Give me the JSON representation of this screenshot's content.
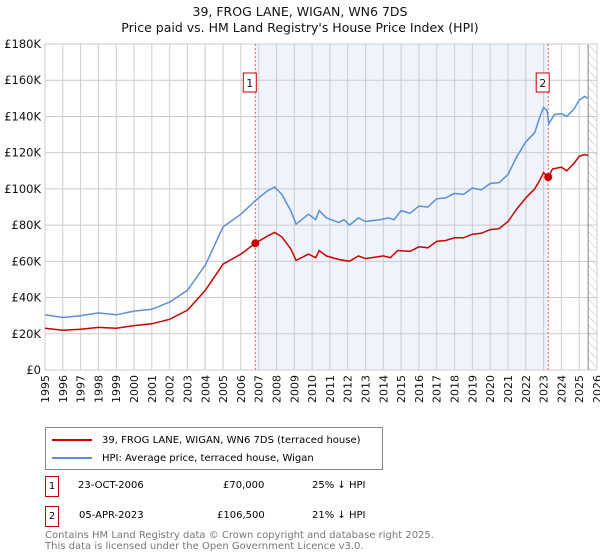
{
  "chart_data": {
    "type": "line",
    "title": "39, FROG LANE, WIGAN, WN6 7DS",
    "subtitle": "Price paid vs. HM Land Registry's House Price Index (HPI)",
    "xlim": [
      1995,
      2026
    ],
    "ylim": [
      0,
      180000
    ],
    "x_ticks": [
      "1995",
      "1996",
      "1997",
      "1998",
      "1999",
      "2000",
      "2001",
      "2002",
      "2003",
      "2004",
      "2005",
      "2006",
      "2007",
      "2008",
      "2009",
      "2010",
      "2011",
      "2012",
      "2013",
      "2014",
      "2015",
      "2016",
      "2017",
      "2018",
      "2019",
      "2020",
      "2021",
      "2022",
      "2023",
      "2024",
      "2025",
      "2026"
    ],
    "y_ticks": [
      {
        "v": 0,
        "label": "£0"
      },
      {
        "v": 20000,
        "label": "£20K"
      },
      {
        "v": 40000,
        "label": "£40K"
      },
      {
        "v": 60000,
        "label": "£60K"
      },
      {
        "v": 80000,
        "label": "£80K"
      },
      {
        "v": 100000,
        "label": "£100K"
      },
      {
        "v": 120000,
        "label": "£120K"
      },
      {
        "v": 140000,
        "label": "£140K"
      },
      {
        "v": 160000,
        "label": "£160K"
      },
      {
        "v": 180000,
        "label": "£180K"
      }
    ],
    "grid": true,
    "shaded_range": [
      2006.81,
      2023.26
    ],
    "hatched_from": 2025.5,
    "series": [
      {
        "name": "39, FROG LANE, WIGAN, WN6 7DS (terraced house)",
        "color": "#cc0000",
        "x": [
          1995,
          1996,
          1997,
          1998,
          1999,
          2000,
          2001,
          2002,
          2003,
          2004,
          2005,
          2006,
          2006.81,
          2007.5,
          2007.9,
          2008.3,
          2008.8,
          2009.1,
          2009.8,
          2010.2,
          2010.4,
          2010.8,
          2011.5,
          2012.1,
          2012.6,
          2013,
          2014,
          2014.4,
          2014.8,
          2015.5,
          2016,
          2016.5,
          2017,
          2017.5,
          2018,
          2018.5,
          2019,
          2019.5,
          2020,
          2020.5,
          2021,
          2021.5,
          2022,
          2022.5,
          2022.8,
          2023,
          2023.26,
          2023.5,
          2024,
          2024.3,
          2024.7,
          2025,
          2025.3,
          2025.5
        ],
        "y": [
          23000,
          22000,
          22500,
          23500,
          23000,
          24500,
          25500,
          28000,
          33000,
          44000,
          58500,
          64000,
          70000,
          74000,
          76000,
          73500,
          67000,
          60500,
          64000,
          62000,
          66000,
          63000,
          61000,
          60000,
          63000,
          61500,
          63000,
          62000,
          66000,
          65500,
          68000,
          67500,
          71000,
          71500,
          73000,
          73000,
          75000,
          75500,
          77500,
          78000,
          82000,
          89000,
          95000,
          100000,
          105000,
          109000,
          106500,
          111000,
          112000,
          110000,
          114000,
          118000,
          119000,
          118500
        ]
      },
      {
        "name": "HPI: Average price, terraced house, Wigan",
        "color": "#5b8fd4",
        "x": [
          1995,
          1996,
          1997,
          1998,
          1999,
          2000,
          2001,
          2002,
          2003,
          2004,
          2005,
          2006,
          2006.81,
          2007.5,
          2007.9,
          2008.3,
          2008.8,
          2009.1,
          2009.8,
          2010.2,
          2010.4,
          2010.8,
          2011.5,
          2011.8,
          2012.1,
          2012.6,
          2013,
          2013.8,
          2014.3,
          2014.6,
          2015,
          2015.5,
          2016,
          2016.5,
          2017,
          2017.5,
          2018,
          2018.5,
          2019,
          2019.5,
          2020,
          2020.5,
          2021,
          2021.5,
          2022,
          2022.5,
          2022.8,
          2023,
          2023.2,
          2023.3,
          2023.6,
          2024,
          2024.3,
          2024.7,
          2025,
          2025.3,
          2025.5
        ],
        "y": [
          30500,
          29000,
          30000,
          31500,
          30500,
          32500,
          33500,
          37500,
          44000,
          58000,
          79000,
          86000,
          93500,
          99000,
          101000,
          97000,
          88000,
          80500,
          86000,
          83000,
          88000,
          84000,
          81500,
          83000,
          80000,
          84000,
          82000,
          83000,
          84000,
          83000,
          88000,
          86500,
          90500,
          90000,
          94500,
          95000,
          97500,
          97000,
          100500,
          99500,
          103000,
          103500,
          108000,
          118000,
          126000,
          131000,
          140000,
          145000,
          143000,
          136000,
          141000,
          141500,
          140000,
          144000,
          149000,
          151000,
          150000
        ]
      }
    ],
    "sales": [
      {
        "label": "1",
        "x": 2006.81,
        "y": 70000
      },
      {
        "label": "2",
        "x": 2023.26,
        "y": 106500
      }
    ]
  },
  "legend": {
    "item1": "39, FROG LANE, WIGAN, WN6 7DS (terraced house)",
    "item2": "HPI: Average price, terraced house, Wigan"
  },
  "sales_table": [
    {
      "num": "1",
      "date": "23-OCT-2006",
      "price": "£70,000",
      "delta": "25% ↓ HPI"
    },
    {
      "num": "2",
      "date": "05-APR-2023",
      "price": "£106,500",
      "delta": "21% ↓ HPI"
    }
  ],
  "footer": {
    "line1": "Contains HM Land Registry data © Crown copyright and database right 2025.",
    "line2": "This data is licensed under the Open Government Licence v3.0."
  },
  "colors": {
    "red": "#cc0000",
    "blue": "#5b8fd4",
    "shade": "#eef3fc"
  }
}
